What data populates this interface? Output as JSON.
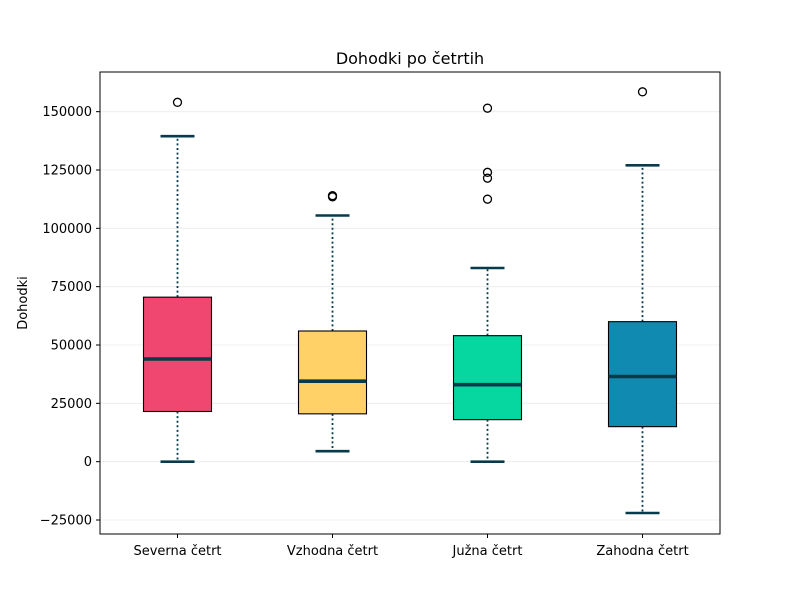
{
  "chart_data": {
    "type": "box",
    "title": "Dohodki po četrtih",
    "xlabel": "",
    "ylabel": "Dohodki",
    "ylim": [
      -31000,
      167000
    ],
    "yticks": [
      -25000,
      0,
      25000,
      50000,
      75000,
      100000,
      125000,
      150000
    ],
    "ytick_labels": [
      "−25000",
      "0",
      "25000",
      "50000",
      "75000",
      "100000",
      "125000",
      "150000"
    ],
    "grid": true,
    "categories": [
      "Severna četrt",
      "Vzhodna četrt",
      "Južna četrt",
      "Zahodna četrt"
    ],
    "series": [
      {
        "category": "Severna četrt",
        "color": "#EF476F",
        "whisker_low": 0,
        "q1": 21500,
        "median": 44000,
        "q3": 70500,
        "whisker_high": 139500,
        "outliers": [
          154000
        ]
      },
      {
        "category": "Vzhodna četrt",
        "color": "#FFD166",
        "whisker_low": 4500,
        "q1": 20500,
        "median": 34500,
        "q3": 56000,
        "whisker_high": 105500,
        "outliers": [
          113500,
          114000
        ]
      },
      {
        "category": "Južna četrt",
        "color": "#06D6A0",
        "whisker_low": 0,
        "q1": 18000,
        "median": 33000,
        "q3": 54000,
        "whisker_high": 83000,
        "outliers": [
          112500,
          121500,
          124000,
          151500
        ]
      },
      {
        "category": "Zahodna četrt",
        "color": "#118AB2",
        "whisker_low": -22000,
        "q1": 15000,
        "median": 36500,
        "q3": 60000,
        "whisker_high": 127000,
        "outliers": [
          158500
        ]
      }
    ],
    "whisker_color": "#073B4C",
    "median_color": "#073B4C"
  }
}
